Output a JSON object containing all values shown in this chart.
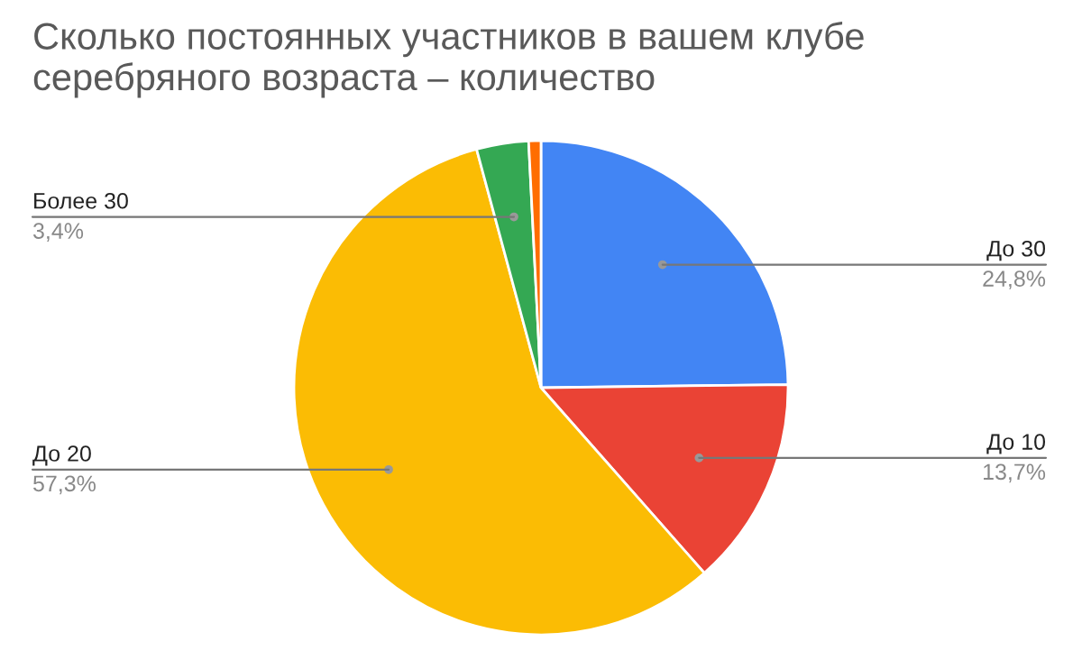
{
  "chart_data": {
    "type": "pie",
    "title": "Сколько постоянных участников в вашем клубе серебряного возраста – количество",
    "categories": [
      "До 30",
      "До 10",
      "До 20",
      "Более 30",
      null
    ],
    "values": [
      24.8,
      13.7,
      57.3,
      3.4,
      0.8
    ],
    "value_labels": [
      "24,8%",
      "13,7%",
      "57,3%",
      "3,4%",
      null
    ],
    "colors": [
      "#4285f4",
      "#ea4335",
      "#fbbc04",
      "#34a853",
      "#ff6d01"
    ],
    "legend": false
  }
}
